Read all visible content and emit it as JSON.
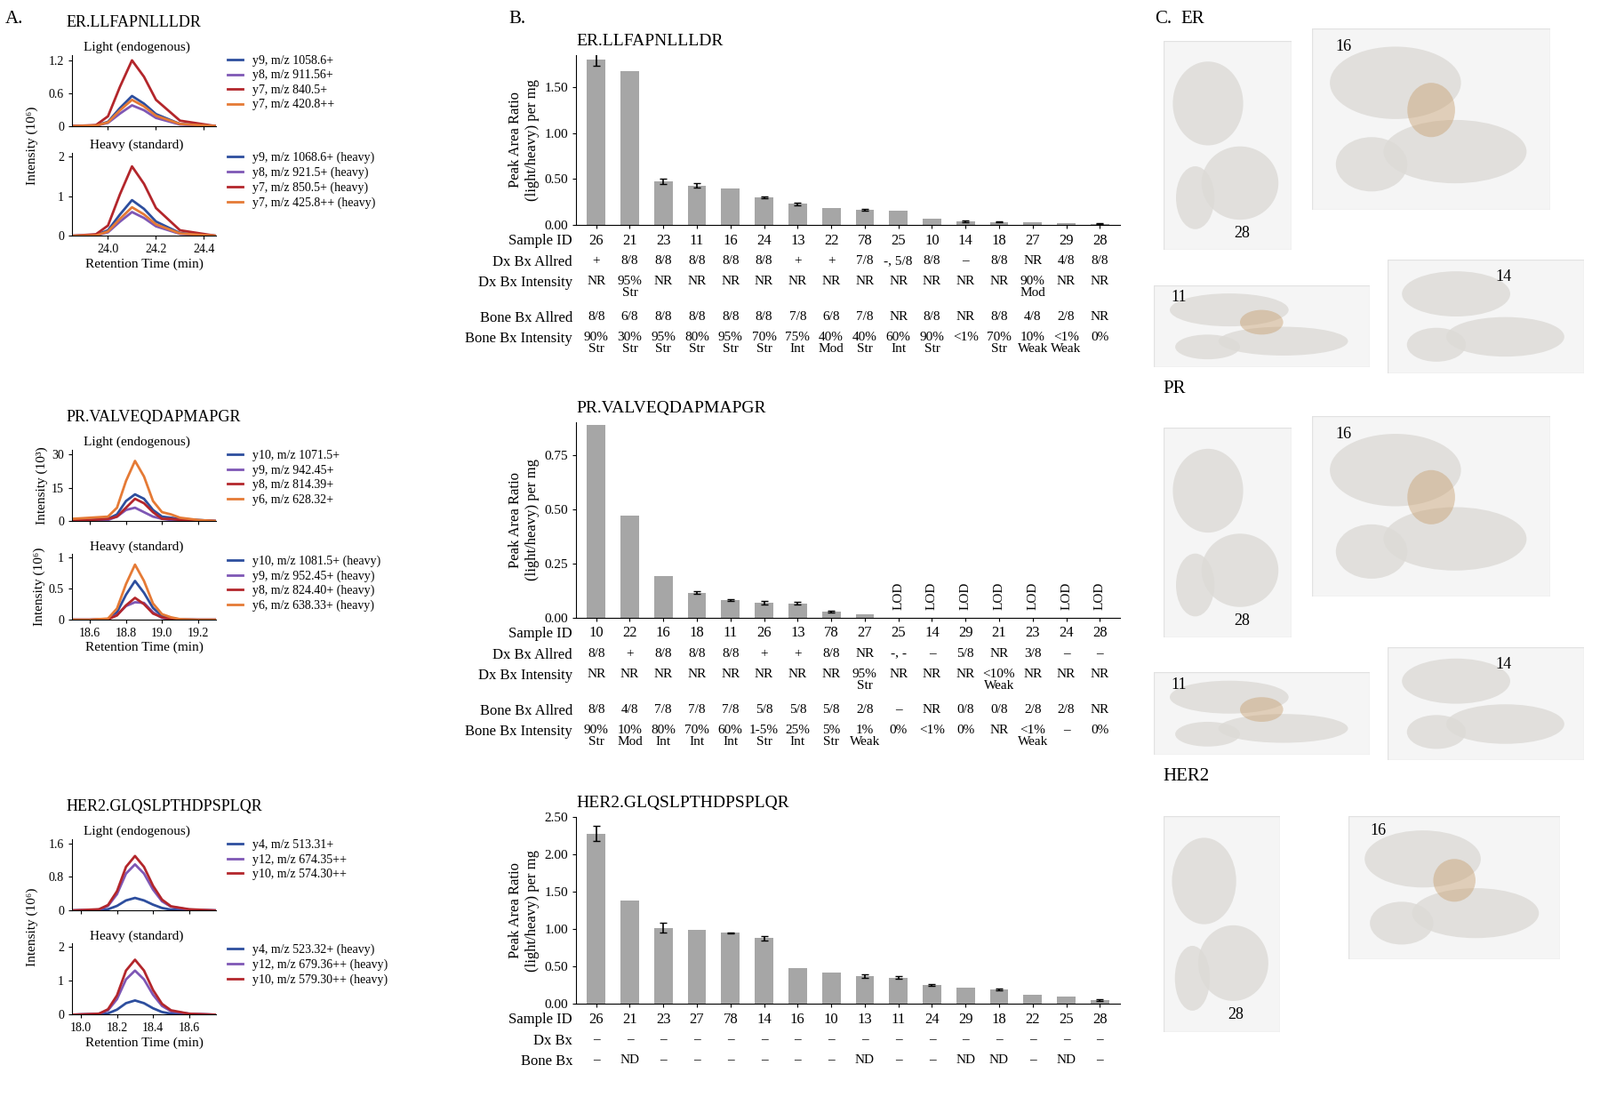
{
  "panel_labels": [
    "A.",
    "B.",
    "C."
  ],
  "chart_data": [
    {
      "type": "line",
      "title": "ER.LLFAPNLLLDR",
      "subtitle": "Light (endogenous)",
      "ylabel": "Intensity (10⁶)",
      "x": [
        23.85,
        23.95,
        24.0,
        24.05,
        24.1,
        24.15,
        24.2,
        24.3,
        24.45
      ],
      "xlim": [
        23.85,
        24.45
      ],
      "xticks": [
        24.0,
        24.2,
        24.4
      ],
      "ylim": [
        0,
        1.3
      ],
      "yticks": [
        0,
        0.6,
        1.2
      ],
      "tick_labels": "y",
      "legend": "upper left",
      "series": [
        {
          "name": "y9, m/z 1058.6+",
          "color": "#2d4e9e",
          "values": [
            0,
            0.01,
            0.08,
            0.33,
            0.55,
            0.41,
            0.22,
            0.04,
            0
          ]
        },
        {
          "name": "y8, m/z 911.56+",
          "color": "#7e57b5",
          "values": [
            0,
            0.01,
            0.06,
            0.23,
            0.38,
            0.29,
            0.15,
            0.03,
            0
          ]
        },
        {
          "name": "y7, m/z 840.5+",
          "color": "#b3262b",
          "values": [
            0,
            0.02,
            0.18,
            0.72,
            1.2,
            0.9,
            0.48,
            0.1,
            0
          ]
        },
        {
          "name": "y7, m/z 420.8++",
          "color": "#e57a35",
          "values": [
            0,
            0.01,
            0.07,
            0.29,
            0.48,
            0.36,
            0.19,
            0.04,
            0
          ]
        }
      ]
    },
    {
      "type": "line",
      "subtitle": "Heavy (standard)",
      "xlabel": "Retention Time (min)",
      "x": [
        23.85,
        23.95,
        24.0,
        24.05,
        24.1,
        24.15,
        24.2,
        24.3,
        24.45
      ],
      "xlim": [
        23.85,
        24.45
      ],
      "xticks": [
        24.0,
        24.2,
        24.4
      ],
      "ylim": [
        0,
        2.1
      ],
      "yticks": [
        0,
        1,
        2
      ],
      "legend": "upper left",
      "series": [
        {
          "name": "y9, m/z 1068.6+ (heavy)",
          "color": "#2d4e9e",
          "values": [
            0,
            0.02,
            0.14,
            0.54,
            0.9,
            0.68,
            0.36,
            0.07,
            0
          ]
        },
        {
          "name": "y8, m/z 921.5+ (heavy)",
          "color": "#7e57b5",
          "values": [
            0,
            0.01,
            0.09,
            0.36,
            0.6,
            0.45,
            0.24,
            0.05,
            0
          ]
        },
        {
          "name": "y7, m/z 850.5+ (heavy)",
          "color": "#b3262b",
          "values": [
            0,
            0.04,
            0.26,
            1.05,
            1.75,
            1.31,
            0.7,
            0.14,
            0
          ]
        },
        {
          "name": "y7, m/z 425.8++ (heavy)",
          "color": "#e57a35",
          "values": [
            0,
            0.01,
            0.11,
            0.43,
            0.72,
            0.54,
            0.29,
            0.06,
            0
          ]
        }
      ]
    },
    {
      "type": "line",
      "title": "PR.VALVEQDAPMAPGR",
      "subtitle": "Light (endogenous)",
      "ylabel": "Intensity (10³)",
      "x": [
        18.5,
        18.6,
        18.7,
        18.75,
        18.8,
        18.85,
        18.9,
        18.95,
        19.0,
        19.05,
        19.1,
        19.2,
        19.3
      ],
      "xlim": [
        18.5,
        19.3
      ],
      "xticks": [
        18.6,
        18.8,
        19.0,
        19.2
      ],
      "ylim": [
        0,
        32
      ],
      "yticks": [
        0,
        15,
        30
      ],
      "tick_labels": "y",
      "legend": "upper left",
      "series": [
        {
          "name": "y10, m/z 1071.5+",
          "color": "#2d4e9e",
          "values": [
            0.5,
            0.5,
            1,
            3,
            9,
            12,
            10,
            5,
            2,
            1.5,
            1,
            0.5,
            0
          ]
        },
        {
          "name": "y9, m/z 942.45+",
          "color": "#7e57b5",
          "values": [
            0.3,
            0.3,
            0.5,
            2,
            5,
            6,
            4,
            2,
            1,
            0.5,
            0.5,
            0.2,
            0
          ]
        },
        {
          "name": "y8, m/z 814.39+",
          "color": "#b3262b",
          "values": [
            0.5,
            0.5,
            1,
            2,
            6,
            10,
            8,
            4,
            1,
            1,
            0.5,
            0.3,
            0
          ]
        },
        {
          "name": "y6, m/z 628.32+",
          "color": "#e57a35",
          "values": [
            1,
            1.5,
            2,
            6,
            18,
            27,
            20,
            9,
            4,
            3,
            1.5,
            0.5,
            0
          ]
        }
      ]
    },
    {
      "type": "line",
      "subtitle": "Heavy (standard)",
      "ylabel": "Intensity (10⁶)",
      "xlabel": "Retention Time (min)",
      "x": [
        18.5,
        18.6,
        18.7,
        18.75,
        18.8,
        18.85,
        18.9,
        18.95,
        19.0,
        19.05,
        19.1,
        19.2,
        19.3
      ],
      "xlim": [
        18.5,
        19.3
      ],
      "xticks": [
        18.6,
        18.8,
        19.0,
        19.2
      ],
      "ylim": [
        0,
        1.05
      ],
      "yticks": [
        0,
        0.5,
        1
      ],
      "legend": "upper left",
      "series": [
        {
          "name": "y10, m/z 1081.5+ (heavy)",
          "color": "#2d4e9e",
          "values": [
            0,
            0,
            0.01,
            0.12,
            0.4,
            0.62,
            0.43,
            0.19,
            0.06,
            0.02,
            0.01,
            0,
            0
          ]
        },
        {
          "name": "y9, m/z 952.45+ (heavy)",
          "color": "#7e57b5",
          "values": [
            0,
            0,
            0.01,
            0.08,
            0.22,
            0.28,
            0.27,
            0.12,
            0.03,
            0.01,
            0,
            0,
            0
          ]
        },
        {
          "name": "y8, m/z 824.40+ (heavy)",
          "color": "#b3262b",
          "values": [
            0,
            0,
            0.01,
            0.07,
            0.23,
            0.35,
            0.25,
            0.1,
            0.04,
            0.01,
            0,
            0,
            0
          ]
        },
        {
          "name": "y6, m/z 638.33+ (heavy)",
          "color": "#e57a35",
          "values": [
            0,
            0,
            0.02,
            0.18,
            0.57,
            0.88,
            0.62,
            0.26,
            0.09,
            0.04,
            0.01,
            0,
            0
          ]
        }
      ]
    },
    {
      "type": "line",
      "title": "HER2.GLQSLPTHDPSPLQR",
      "subtitle": "Light (endogenous)",
      "ylabel": "Intensity (10⁶)",
      "x": [
        17.95,
        18.1,
        18.15,
        18.2,
        18.25,
        18.3,
        18.35,
        18.4,
        18.45,
        18.5,
        18.6,
        18.75
      ],
      "xlim": [
        17.95,
        18.75
      ],
      "xticks": [
        18.0,
        18.2,
        18.4,
        18.6
      ],
      "ylim": [
        0,
        1.7
      ],
      "yticks": [
        0,
        0.8,
        1.6
      ],
      "tick_labels": "y",
      "legend": "upper left",
      "series": [
        {
          "name": "y4, m/z 513.31+",
          "color": "#2d4e9e",
          "values": [
            0,
            0.01,
            0.03,
            0.11,
            0.24,
            0.3,
            0.24,
            0.14,
            0.06,
            0.02,
            0.01,
            0
          ]
        },
        {
          "name": "y12, m/z 674.35++",
          "color": "#7e57b5",
          "values": [
            0,
            0.02,
            0.11,
            0.39,
            0.88,
            1.1,
            0.88,
            0.5,
            0.22,
            0.09,
            0.02,
            0
          ]
        },
        {
          "name": "y10, m/z 574.30++",
          "color": "#b3262b",
          "values": [
            0,
            0.03,
            0.13,
            0.46,
            1.04,
            1.3,
            1.04,
            0.59,
            0.26,
            0.1,
            0.03,
            0
          ]
        }
      ]
    },
    {
      "type": "line",
      "subtitle": "Heavy (standard)",
      "xlabel": "Retention Time (min)",
      "x": [
        17.95,
        18.1,
        18.15,
        18.2,
        18.25,
        18.3,
        18.35,
        18.4,
        18.45,
        18.5,
        18.6,
        18.75
      ],
      "xlim": [
        17.95,
        18.75
      ],
      "xticks": [
        18.0,
        18.2,
        18.4,
        18.6
      ],
      "ylim": [
        0,
        2.1
      ],
      "yticks": [
        0,
        1,
        2
      ],
      "legend": "upper left",
      "series": [
        {
          "name": "y4, m/z 523.32+ (heavy)",
          "color": "#2d4e9e",
          "values": [
            0,
            0.01,
            0.04,
            0.15,
            0.34,
            0.42,
            0.34,
            0.19,
            0.08,
            0.03,
            0.01,
            0
          ]
        },
        {
          "name": "y12, m/z 679.36++ (heavy)",
          "color": "#7e57b5",
          "values": [
            0,
            0.03,
            0.13,
            0.46,
            1.04,
            1.3,
            1.04,
            0.59,
            0.26,
            0.1,
            0.03,
            0
          ]
        },
        {
          "name": "y10, m/z 579.30++ (heavy)",
          "color": "#b3262b",
          "values": [
            0,
            0.03,
            0.16,
            0.57,
            1.3,
            1.62,
            1.3,
            0.73,
            0.32,
            0.13,
            0.03,
            0
          ]
        }
      ]
    },
    {
      "type": "bar",
      "title": "ER.LLFAPNLLLDR",
      "ylabel": "Peak Area Ratio\n(light/heavy) per mg",
      "xlabel": "Sample ID",
      "categories": [
        "26",
        "21",
        "23",
        "11",
        "16",
        "24",
        "13",
        "22",
        "78",
        "25",
        "10",
        "14",
        "18",
        "27",
        "29",
        "28"
      ],
      "values": [
        1.8,
        1.67,
        0.47,
        0.43,
        0.4,
        0.3,
        0.23,
        0.18,
        0.16,
        0.15,
        0.07,
        0.04,
        0.03,
        0.025,
        0.015,
        0.01
      ],
      "errors": [
        0.07,
        null,
        0.03,
        0.02,
        null,
        0.01,
        0.015,
        null,
        0.01,
        null,
        null,
        0.01,
        0.005,
        null,
        null,
        0.005
      ],
      "color": "#a6a6a6",
      "ylim": [
        0,
        1.85
      ],
      "yticks": [
        {
          "value": 0,
          "label": "0.00"
        },
        {
          "value": 0.5,
          "label": "0.50"
        },
        {
          "value": 1.0,
          "label": "1.00"
        },
        {
          "value": 1.5,
          "label": "1.50"
        }
      ],
      "rows": [
        {
          "label": "Dx Bx Allred",
          "values": [
            "+",
            "8/8",
            "8/8",
            "8/8",
            "8/8",
            "8/8",
            "+",
            "+",
            "7/8",
            "-, 5/8",
            "8/8",
            "–",
            "8/8",
            "NR",
            "4/8",
            "8/8"
          ]
        },
        {
          "label": "Dx Bx Intensity",
          "values": [
            "NR",
            "95%\nStr",
            "NR",
            "NR",
            "NR",
            "NR",
            "NR",
            "NR",
            "NR",
            "NR",
            "NR",
            "NR",
            "NR",
            "90%\nMod",
            "NR",
            "NR"
          ]
        },
        {
          "label": "Bone Bx Allred",
          "values": [
            "8/8",
            "6/8",
            "8/8",
            "8/8",
            "8/8",
            "8/8",
            "7/8",
            "6/8",
            "7/8",
            "NR",
            "8/8",
            "NR",
            "8/8",
            "4/8",
            "2/8",
            "NR"
          ]
        },
        {
          "label": "Bone Bx Intensity",
          "values": [
            "90%\nStr",
            "30%\nStr",
            "95%\nStr",
            "80%\nStr",
            "95%\nStr",
            "70%\nStr",
            "75%\nInt",
            "40%\nMod",
            "40%\nStr",
            "60%\nInt",
            "90%\nStr",
            "<1%",
            "70%\nStr",
            "10%\nWeak",
            "<1%\nWeak",
            "0%"
          ]
        }
      ]
    },
    {
      "type": "bar",
      "title": "PR.VALVEQDAPMAPGR",
      "ylabel": "Peak Area Ratio\n(light/heavy) per mg",
      "xlabel": "Sample ID",
      "categories": [
        "10",
        "22",
        "16",
        "18",
        "11",
        "26",
        "13",
        "78",
        "27",
        "25",
        "14",
        "29",
        "21",
        "23",
        "24",
        "28"
      ],
      "values": [
        0.89,
        0.47,
        0.19,
        0.115,
        0.08,
        0.07,
        0.065,
        0.028,
        0.015,
        null,
        null,
        null,
        null,
        null,
        null,
        null
      ],
      "value_labels": [
        null,
        null,
        null,
        null,
        null,
        null,
        null,
        null,
        null,
        "LOD",
        "LOD",
        "LOD",
        "LOD",
        "LOD",
        "LOD",
        "LOD"
      ],
      "errors": [
        null,
        null,
        null,
        0.005,
        0.004,
        0.008,
        0.006,
        0.004,
        null,
        null,
        null,
        null,
        null,
        null,
        null,
        null
      ],
      "color": "#a6a6a6",
      "ylim": [
        0,
        0.9
      ],
      "yticks": [
        {
          "value": 0,
          "label": "0.00"
        },
        {
          "value": 0.25,
          "label": "0.25"
        },
        {
          "value": 0.5,
          "label": "0.50"
        },
        {
          "value": 0.75,
          "label": "0.75"
        }
      ],
      "rows": [
        {
          "label": "Dx Bx Allred",
          "values": [
            "8/8",
            "+",
            "8/8",
            "8/8",
            "8/8",
            "+",
            "+",
            "8/8",
            "NR",
            "-, -",
            "–",
            "5/8",
            "NR",
            "3/8",
            "–",
            "–"
          ]
        },
        {
          "label": "Dx Bx Intensity",
          "values": [
            "NR",
            "NR",
            "NR",
            "NR",
            "NR",
            "NR",
            "NR",
            "NR",
            "95%\nStr",
            "NR",
            "NR",
            "NR",
            "<10%\nWeak",
            "NR",
            "NR",
            "NR"
          ]
        },
        {
          "label": "Bone Bx Allred",
          "values": [
            "8/8",
            "4/8",
            "7/8",
            "7/8",
            "7/8",
            "5/8",
            "5/8",
            "5/8",
            "2/8",
            "–",
            "NR",
            "0/8",
            "0/8",
            "2/8",
            "2/8",
            "NR"
          ]
        },
        {
          "label": "Bone Bx Intensity",
          "values": [
            "90%\nStr",
            "10%\nMod",
            "80%\nInt",
            "70%\nInt",
            "60%\nInt",
            "1-5%\nStr",
            "25%\nInt",
            "5%\nStr",
            "1%\nWeak",
            "0%",
            "<1%",
            "0%",
            "NR",
            "<1%\nWeak",
            "–",
            "0%"
          ]
        }
      ]
    },
    {
      "type": "bar",
      "title": "HER2.GLQSLPTHDPSPLQR",
      "ylabel": "Peak Area Ratio\n(light/heavy) per mg",
      "xlabel": "Sample ID",
      "categories": [
        "26",
        "21",
        "23",
        "27",
        "78",
        "14",
        "16",
        "10",
        "13",
        "11",
        "24",
        "29",
        "18",
        "22",
        "25",
        "28"
      ],
      "values": [
        2.28,
        1.38,
        1.02,
        0.99,
        0.95,
        0.88,
        0.48,
        0.42,
        0.37,
        0.35,
        0.25,
        0.22,
        0.19,
        0.12,
        0.1,
        0.05
      ],
      "errors": [
        0.1,
        null,
        0.07,
        null,
        0.01,
        0.03,
        null,
        null,
        0.02,
        0.02,
        0.01,
        null,
        0.01,
        null,
        null,
        0.01
      ],
      "color": "#a6a6a6",
      "ylim": [
        0,
        2.5
      ],
      "yticks": [
        {
          "value": 0,
          "label": "0.00"
        },
        {
          "value": 0.5,
          "label": "0.50"
        },
        {
          "value": 1.0,
          "label": "1.00"
        },
        {
          "value": 1.5,
          "label": "1.50"
        },
        {
          "value": 2.0,
          "label": "2.00"
        },
        {
          "value": 2.5,
          "label": "2.50"
        }
      ],
      "rows": [
        {
          "label": "Dx Bx",
          "values": [
            "–",
            "–",
            "–",
            "–",
            "–",
            "–",
            "–",
            "–",
            "–",
            "–",
            "–",
            "–",
            "–",
            "–",
            "–",
            "–"
          ]
        },
        {
          "label": "Bone Bx",
          "values": [
            "–",
            "ND",
            "–",
            "–",
            "–",
            "–",
            "–",
            "–",
            "ND",
            "–",
            "–",
            "ND",
            "ND",
            "–",
            "ND",
            "–"
          ]
        }
      ]
    }
  ],
  "images": [
    {
      "title": "ER",
      "tiles": [
        "28",
        "16",
        "11",
        "14"
      ]
    },
    {
      "title": "PR",
      "tiles": [
        "28",
        "16",
        "11",
        "14"
      ]
    },
    {
      "title": "HER2",
      "tiles": [
        "28",
        "16"
      ]
    }
  ]
}
